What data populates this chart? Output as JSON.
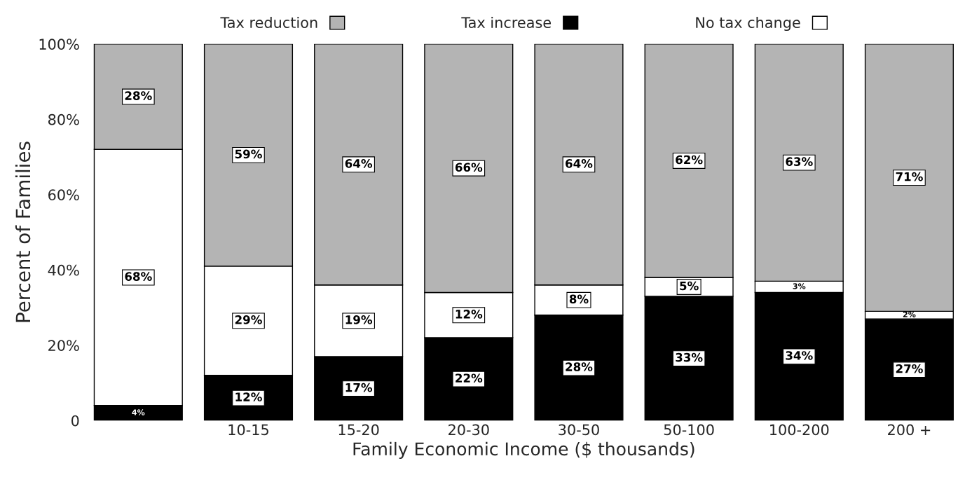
{
  "chart_data": {
    "type": "bar",
    "stacked": true,
    "legend": "top",
    "grid": false,
    "ylabel": "Percent of Families",
    "xlabel": "Family Economic Income ($ thousands)",
    "categories": [
      null,
      "10-15",
      "15-20",
      "20-30",
      "30-50",
      "50-100",
      "100-200",
      "200 +"
    ],
    "ylim": [
      0,
      100
    ],
    "yticks": [
      {
        "value": 0,
        "label": "0"
      },
      {
        "value": 20,
        "label": "20%"
      },
      {
        "value": 40,
        "label": "40%"
      },
      {
        "value": 60,
        "label": "60%"
      },
      {
        "value": 80,
        "label": "80%"
      },
      {
        "value": 100,
        "label": "100%"
      }
    ],
    "series": [
      {
        "name": "Tax increase",
        "color": "#000000",
        "values": [
          4,
          12,
          17,
          22,
          28,
          33,
          34,
          27
        ],
        "value_labels": [
          "4%",
          "12%",
          "17%",
          "22%",
          "28%",
          "33%",
          "34%",
          "27%"
        ]
      },
      {
        "name": "No tax change",
        "color": "#ffffff",
        "values": [
          68,
          29,
          19,
          12,
          8,
          5,
          3,
          2
        ],
        "value_labels": [
          "68%",
          "29%",
          "19%",
          "12%",
          "8%",
          "5%",
          "3%",
          "2%"
        ]
      },
      {
        "name": "Tax reduction",
        "color": "#b4b4b4",
        "values": [
          28,
          59,
          64,
          66,
          64,
          62,
          63,
          71
        ],
        "value_labels": [
          "28%",
          "59%",
          "64%",
          "66%",
          "64%",
          "62%",
          "63%",
          "71%"
        ]
      }
    ]
  }
}
